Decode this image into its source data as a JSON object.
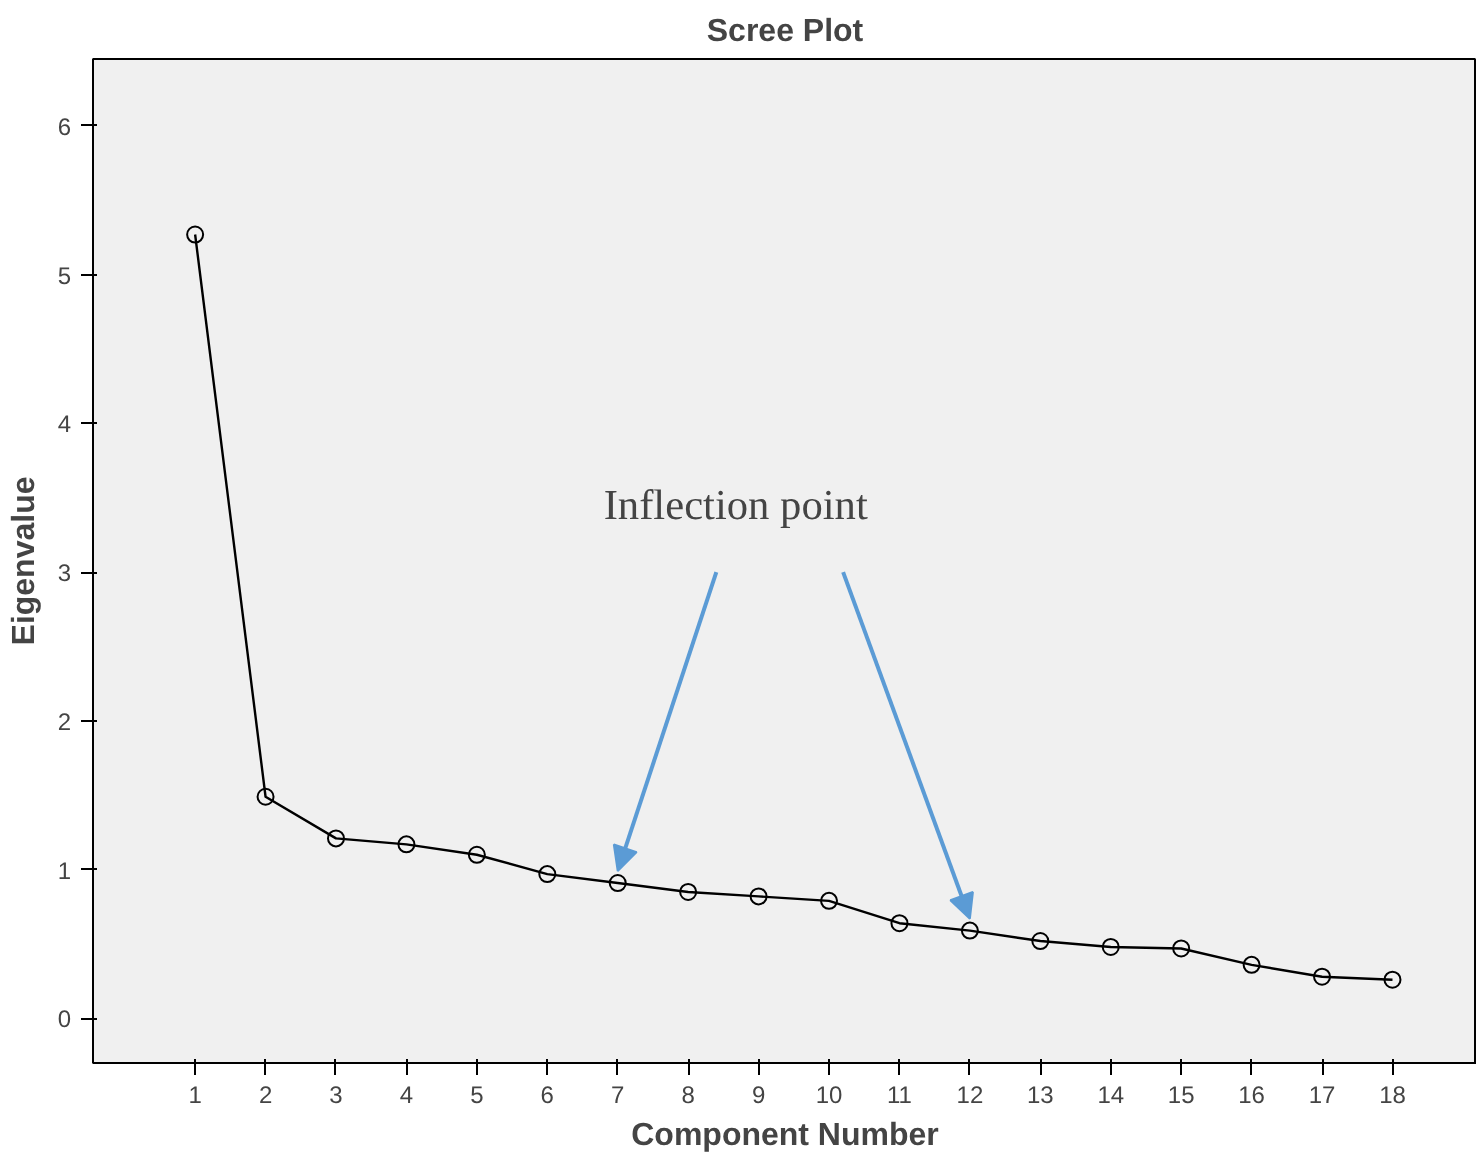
{
  "chart_data": {
    "type": "line",
    "title": "Scree Plot",
    "xlabel": "Component Number",
    "ylabel": "Eigenvalue",
    "x": [
      1,
      2,
      3,
      4,
      5,
      6,
      7,
      8,
      9,
      10,
      11,
      12,
      13,
      14,
      15,
      16,
      17,
      18
    ],
    "values": [
      5.27,
      1.49,
      1.21,
      1.17,
      1.1,
      0.97,
      0.91,
      0.85,
      0.82,
      0.79,
      0.64,
      0.59,
      0.52,
      0.48,
      0.47,
      0.36,
      0.28,
      0.26
    ],
    "color": "#000000",
    "marker": "circle",
    "line_style": "solid",
    "grid": false,
    "xlim": [
      -0.45,
      19.2
    ],
    "ylim": [
      -0.3,
      6.45
    ],
    "xticks": [
      1,
      2,
      3,
      4,
      5,
      6,
      7,
      8,
      9,
      10,
      11,
      12,
      13,
      14,
      15,
      16,
      17,
      18
    ],
    "yticks": [
      0,
      1,
      2,
      3,
      4,
      5,
      6
    ],
    "annotations": [
      {
        "text": "Inflection point",
        "x": 7,
        "y": 0.91
      }
    ]
  }
}
